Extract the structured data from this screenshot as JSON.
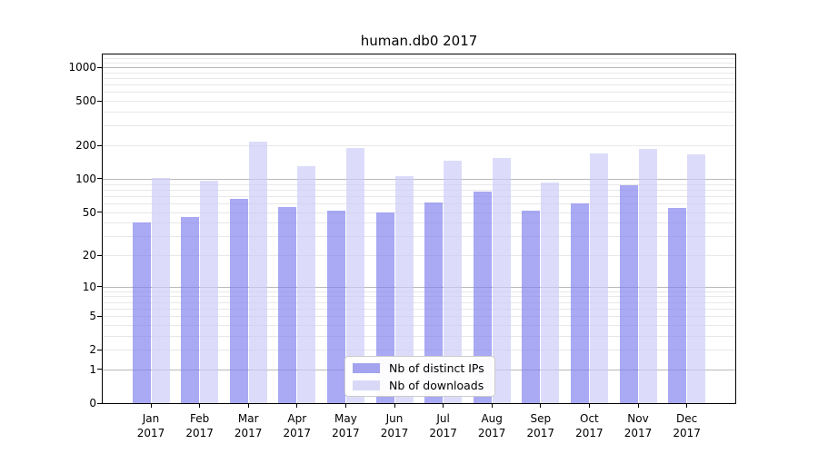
{
  "chart_data": {
    "type": "bar",
    "title": "human.db0 2017",
    "categories": [
      "Jan",
      "Feb",
      "Mar",
      "Apr",
      "May",
      "Jun",
      "Jul",
      "Aug",
      "Sep",
      "Oct",
      "Nov",
      "Dec"
    ],
    "category_line2": "2017",
    "series": [
      {
        "name": "Nb of distinct IPs",
        "color": "#7f7fee",
        "swatch_color": "#a3a3ef",
        "values": [
          40,
          45,
          66,
          56,
          51,
          50,
          61,
          76,
          51,
          60,
          88,
          54
        ]
      },
      {
        "name": "Nb of downloads",
        "color": "#cbcbf7",
        "swatch_color": "#d9d9f7",
        "values": [
          102,
          96,
          215,
          130,
          190,
          105,
          145,
          155,
          93,
          168,
          185,
          165
        ]
      }
    ],
    "xlabel": "",
    "ylabel": "",
    "y_scale": "log10(1+x)",
    "ylim": [
      0,
      1300
    ],
    "y_ticks": [
      0,
      1,
      2,
      5,
      10,
      20,
      50,
      100,
      200,
      500,
      1000
    ],
    "grid": {
      "major_values": [
        1,
        10,
        100,
        1000
      ],
      "minor_values": [
        2,
        3,
        4,
        5,
        6,
        7,
        8,
        9,
        20,
        30,
        40,
        50,
        60,
        70,
        80,
        90,
        200,
        300,
        400,
        500,
        600,
        700,
        800,
        900,
        1100,
        1200
      ]
    },
    "colors": {
      "grid_major": "#b9b9b9",
      "grid_minor": "#e8e8e8",
      "spine": "#000000",
      "background": "#ffffff"
    },
    "legend": {
      "position": "lower-center",
      "entries": [
        "Nb of distinct IPs",
        "Nb of downloads"
      ]
    }
  }
}
